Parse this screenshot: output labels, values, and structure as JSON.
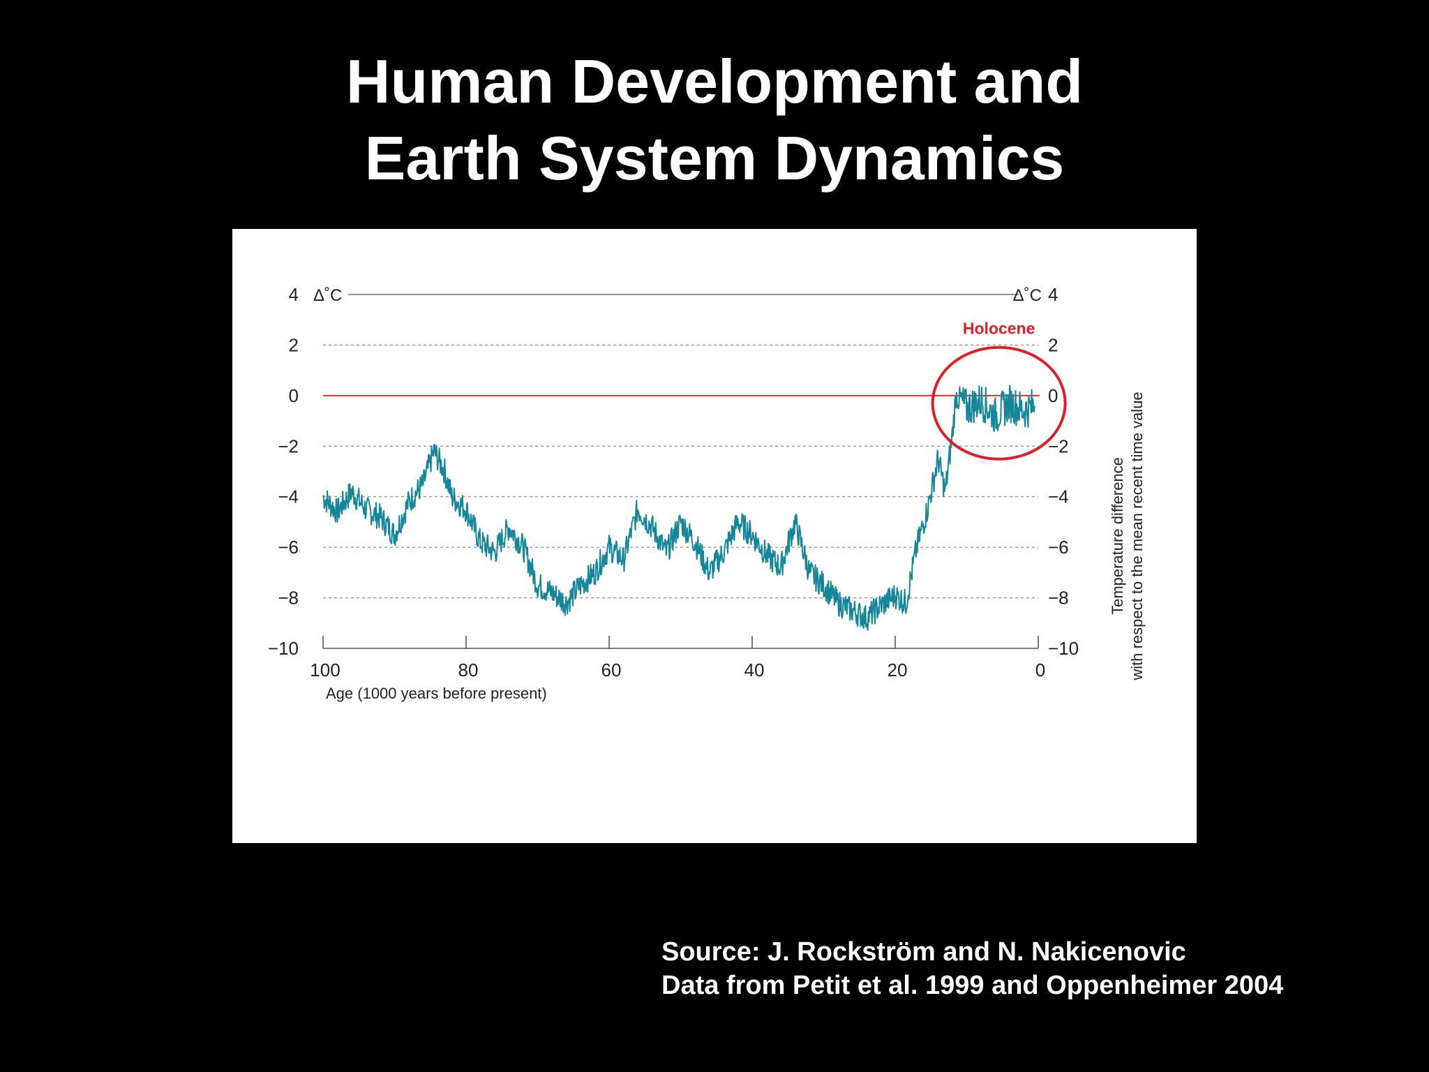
{
  "slide": {
    "title_line1": "Human Development and",
    "title_line2": "Earth System Dynamics",
    "source_line1": "Source: J. Rockström and N. Nakicenovic",
    "source_line2": "Data from Petit et al. 1999 and Oppenheimer 2004"
  },
  "chart_data": {
    "type": "line",
    "title": "",
    "xlabel": "Age (1000 years before present)",
    "ylabel": "Temperature difference with respect to the mean recent time value",
    "ylabel_line1": "Temperature difference",
    "ylabel_line2": "with respect to the mean recent time value",
    "y_unit": "Δ˚C",
    "xlim": [
      100,
      0
    ],
    "ylim": [
      -10,
      4
    ],
    "x_ticks": [
      "100",
      "80",
      "60",
      "40",
      "20",
      "0"
    ],
    "x_tick_values": [
      100,
      80,
      60,
      40,
      20,
      0
    ],
    "y_ticks": [
      "4",
      "2",
      "0",
      "−2",
      "−4",
      "−6",
      "−8",
      "−10"
    ],
    "y_tick_values": [
      4,
      2,
      0,
      -2,
      -4,
      -6,
      -8,
      -10
    ],
    "grid": "dashed horizontal",
    "reference_line": {
      "y": 0,
      "color": "#e8302a"
    },
    "annotation": {
      "text": "Holocene",
      "color": "#e01e26",
      "circle_center": [
        5.5,
        -0.3
      ]
    },
    "series": [
      {
        "color": "#16879a",
        "x": [
          100,
          98,
          96,
          94,
          92,
          90,
          88,
          86,
          84.5,
          83,
          82,
          80,
          78,
          76,
          74,
          72,
          70,
          68,
          66,
          64,
          62,
          60,
          58,
          56,
          54,
          52,
          50,
          48,
          46,
          44,
          42,
          40,
          38,
          36,
          34,
          32,
          30,
          28,
          26,
          24,
          22,
          20,
          18.5,
          17,
          15.5,
          14,
          13,
          12,
          11.5,
          10,
          8,
          6,
          4,
          2,
          0.5
        ],
        "y": [
          -4.0,
          -4.6,
          -3.8,
          -4.5,
          -4.8,
          -5.5,
          -4.2,
          -3.5,
          -2.2,
          -3.0,
          -4.0,
          -4.5,
          -5.8,
          -6.2,
          -5.2,
          -6.0,
          -7.5,
          -7.8,
          -8.2,
          -7.5,
          -7.0,
          -6.0,
          -6.5,
          -4.5,
          -5.2,
          -6.2,
          -5.0,
          -5.8,
          -7.0,
          -6.2,
          -5.0,
          -5.5,
          -6.3,
          -6.8,
          -5.0,
          -7.0,
          -7.5,
          -8.2,
          -8.5,
          -8.8,
          -8.3,
          -7.9,
          -8.2,
          -6.0,
          -4.5,
          -2.5,
          -3.8,
          -1.5,
          0.0,
          -0.5,
          -0.2,
          -0.8,
          -0.3,
          -0.6,
          -0.4
        ]
      }
    ]
  }
}
